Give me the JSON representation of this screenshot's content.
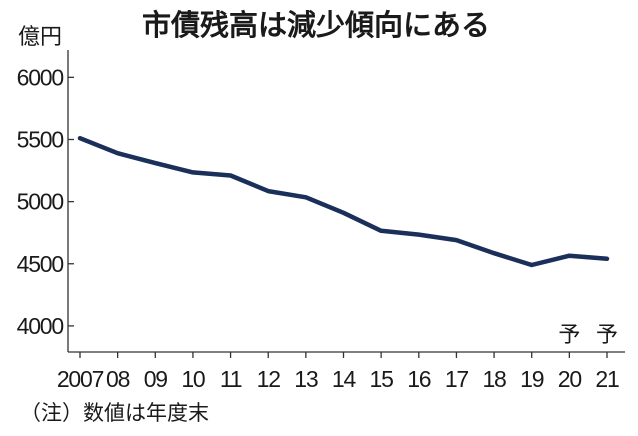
{
  "chart_data": {
    "type": "line",
    "title": "市債残高は減少傾向にある",
    "ylabel": "億円",
    "xlabel": "",
    "categories": [
      "2007",
      "08",
      "09",
      "10",
      "11",
      "12",
      "13",
      "14",
      "15",
      "16",
      "17",
      "18",
      "19",
      "20",
      "21"
    ],
    "series": [
      {
        "values": [
          5510,
          5390,
          5310,
          5235,
          5210,
          5085,
          5035,
          4910,
          4765,
          4735,
          4690,
          4585,
          4490,
          4565,
          4540
        ]
      }
    ],
    "yticks": [
      6000,
      5500,
      5000,
      4500,
      4000
    ],
    "ylim": [
      3790,
      6220
    ],
    "annotations": [
      {
        "category": "20",
        "text": "予"
      },
      {
        "category": "21",
        "text": "予"
      }
    ],
    "note": "（注）数値は年度末",
    "grid": false,
    "line_color": "#1b2f5b"
  }
}
